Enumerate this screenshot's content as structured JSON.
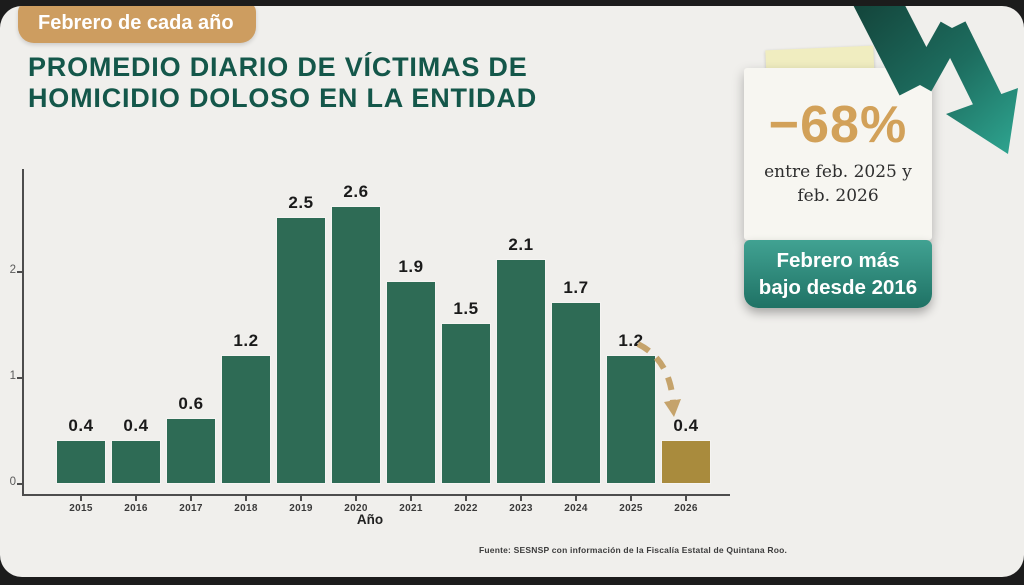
{
  "slide": {
    "badge_label": "Febrero de cada año",
    "title_line1": "PROMEDIO DIARIO DE VÍCTIMAS DE",
    "title_line2": "HOMICIDIO DOLOSO EN LA ENTIDAD",
    "source_text": "Fuente: SESNSP con información de la Fiscalía Estatal de Quintana Roo."
  },
  "callout": {
    "percent_label": "−68%",
    "caption_line1": "entre feb. 2025 y",
    "caption_line2": "feb. 2026",
    "banner_line1": "Febrero más",
    "banner_line2": "bajo desde 2016"
  },
  "chart_data": {
    "type": "bar",
    "title": "Promedio diario de víctimas de homicidio doloso en la entidad",
    "subtitle": "Febrero de cada año",
    "categories": [
      "2015",
      "2016",
      "2017",
      "2018",
      "2019",
      "2020",
      "2021",
      "2022",
      "2023",
      "2024",
      "2025",
      "2026"
    ],
    "values": [
      0.4,
      0.4,
      0.6,
      1.2,
      2.5,
      2.6,
      1.9,
      1.5,
      2.1,
      1.7,
      1.2,
      0.4
    ],
    "xlabel": "Año",
    "ylabel": "",
    "yticks": [
      0,
      1,
      2
    ],
    "ylim": [
      0,
      2.9
    ],
    "grid": false,
    "legend": "none",
    "bar_color": "#2e6b55",
    "highlight_color": "#a98b3d",
    "highlight_index": 11
  },
  "colors": {
    "outer_bg": "#1c1c1c",
    "slide_bg": "#f0efec",
    "title_green": "#14574a",
    "badge_tan": "#cd9d60",
    "accent_tan": "#d2a159",
    "dashed_arrow_tan": "#c5a36b",
    "banner_teal_top": "#41a292",
    "banner_teal_bottom": "#1f7265",
    "big_arrow_dark": "#123e35",
    "big_arrow_light": "#2fa893"
  }
}
